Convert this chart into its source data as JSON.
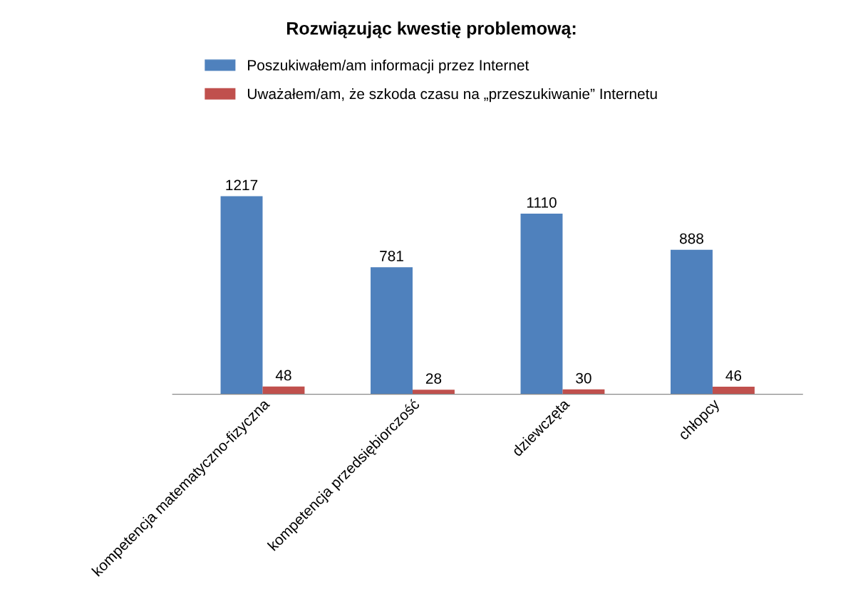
{
  "chart_data": {
    "type": "bar",
    "title": "Rozwiązując kwestię problemową:",
    "categories": [
      "kompetencja matematyczno-fizyczna",
      "kompetencja przedsiębiorczość",
      "dziewczęta",
      "chłopcy"
    ],
    "series": [
      {
        "name": "Poszukiwałem/am informacji przez Internet",
        "color": "#4f81bd",
        "values": [
          1217,
          781,
          1110,
          888
        ]
      },
      {
        "name": "Uważałem/am, że szkoda czasu na „przeszukiwanie” Internetu",
        "color": "#c0504d",
        "values": [
          48,
          28,
          30,
          46
        ]
      }
    ],
    "data_labels": true,
    "legend": "top",
    "grid": false,
    "tick_labels": "x"
  }
}
